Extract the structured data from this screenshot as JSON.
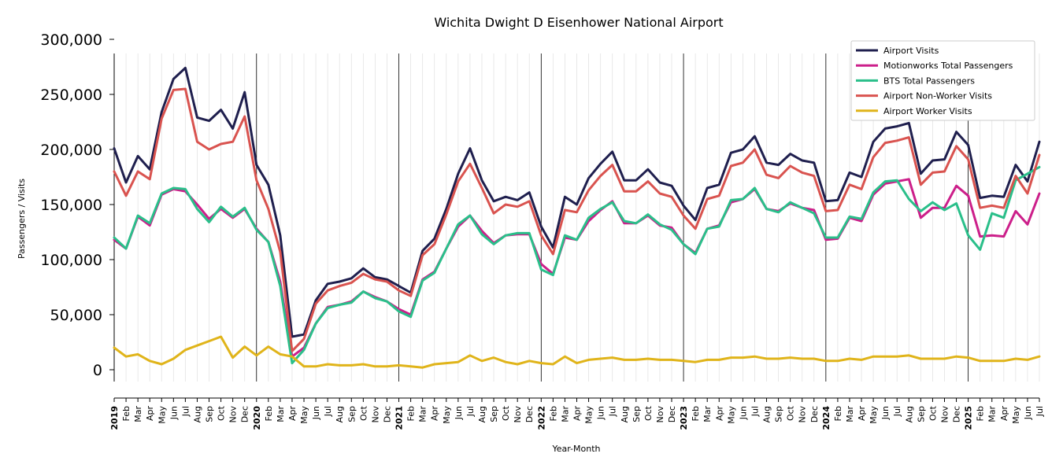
{
  "chart_data": {
    "type": "line",
    "title": "Wichita Dwight D Eisenhower National Airport",
    "xlabel": "Year-Month",
    "ylabel": "Passengers / Visits",
    "ylim": [
      0,
      300000
    ],
    "yticks": [
      0,
      50000,
      100000,
      150000,
      200000,
      250000,
      300000
    ],
    "ytick_labels": [
      "0",
      "50,000",
      "100,000",
      "150,000",
      "200,000",
      "250,000",
      "300,000"
    ],
    "legend_position": "top-right",
    "x": [
      "2019-01",
      "2019-02",
      "2019-03",
      "2019-04",
      "2019-05",
      "2019-06",
      "2019-07",
      "2019-08",
      "2019-09",
      "2019-10",
      "2019-11",
      "2019-12",
      "2020-01",
      "2020-02",
      "2020-03",
      "2020-04",
      "2020-05",
      "2020-06",
      "2020-07",
      "2020-08",
      "2020-09",
      "2020-10",
      "2020-11",
      "2020-12",
      "2021-01",
      "2021-02",
      "2021-03",
      "2021-04",
      "2021-05",
      "2021-06",
      "2021-07",
      "2021-08",
      "2021-09",
      "2021-10",
      "2021-11",
      "2021-12",
      "2022-01",
      "2022-02",
      "2022-03",
      "2022-04",
      "2022-05",
      "2022-06",
      "2022-07",
      "2022-08",
      "2022-09",
      "2022-10",
      "2022-11",
      "2022-12",
      "2023-01",
      "2023-02",
      "2023-03",
      "2023-04",
      "2023-05",
      "2023-06",
      "2023-07",
      "2023-08",
      "2023-09",
      "2023-10",
      "2023-11",
      "2023-12",
      "2024-01",
      "2024-02",
      "2024-03",
      "2024-04",
      "2024-05",
      "2024-06",
      "2024-07",
      "2024-08",
      "2024-09",
      "2024-10",
      "2024-11",
      "2024-12",
      "2025-01",
      "2025-02",
      "2025-03",
      "2025-04",
      "2025-05",
      "2025-06",
      "2025-07"
    ],
    "tick_labels": [
      "2019",
      "Feb",
      "Mar",
      "Apr",
      "May",
      "Jun",
      "Jul",
      "Aug",
      "Sep",
      "Oct",
      "Nov",
      "Dec",
      "2020",
      "Feb",
      "Mar",
      "Apr",
      "May",
      "Jun",
      "Jul",
      "Aug",
      "Sep",
      "Oct",
      "Nov",
      "Dec",
      "2021",
      "Feb",
      "Mar",
      "Apr",
      "May",
      "Jun",
      "Jul",
      "Aug",
      "Sep",
      "Oct",
      "Nov",
      "Dec",
      "2022",
      "Feb",
      "Mar",
      "Apr",
      "May",
      "Jun",
      "Jul",
      "Aug",
      "Sep",
      "Oct",
      "Nov",
      "Dec",
      "2023",
      "Feb",
      "Mar",
      "Apr",
      "May",
      "Jun",
      "Jul",
      "Aug",
      "Sep",
      "Oct",
      "Nov",
      "Dec",
      "2024",
      "Feb",
      "Mar",
      "Apr",
      "May",
      "Jun",
      "Jul",
      "Aug",
      "Sep",
      "Oct",
      "Nov",
      "Dec",
      "2025",
      "Feb",
      "Mar",
      "Apr",
      "May",
      "Jun",
      "Jul"
    ],
    "series": [
      {
        "name": "Airport Visits",
        "color": "#1f1f4e",
        "values": [
          201000,
          170000,
          194000,
          182000,
          234000,
          264000,
          274000,
          229000,
          226000,
          236000,
          219000,
          252000,
          186000,
          168000,
          122000,
          30000,
          32000,
          63000,
          78000,
          80000,
          83000,
          92000,
          84000,
          82000,
          76000,
          70000,
          108000,
          119000,
          146000,
          178000,
          201000,
          172000,
          153000,
          157000,
          154000,
          161000,
          130000,
          111000,
          157000,
          150000,
          174000,
          187000,
          198000,
          172000,
          172000,
          182000,
          170000,
          167000,
          149000,
          136000,
          165000,
          168000,
          197000,
          200000,
          212000,
          188000,
          186000,
          196000,
          190000,
          188000,
          153000,
          154000,
          179000,
          175000,
          207000,
          219000,
          221000,
          224000,
          178000,
          190000,
          191000,
          216000,
          204000,
          156000,
          158000,
          157000,
          186000,
          171000,
          207000
        ]
      },
      {
        "name": "Motionworks Total Passengers",
        "color": "#cc1f8a",
        "values": [
          118000,
          110000,
          139000,
          131000,
          159000,
          164000,
          162000,
          150000,
          137000,
          146000,
          138000,
          146000,
          128000,
          116000,
          80000,
          12000,
          20000,
          42000,
          57000,
          59000,
          62000,
          71000,
          66000,
          62000,
          55000,
          50000,
          82000,
          89000,
          110000,
          130000,
          140000,
          126000,
          115000,
          122000,
          123000,
          123000,
          96000,
          87000,
          120000,
          118000,
          135000,
          145000,
          153000,
          133000,
          133000,
          140000,
          131000,
          129000,
          114000,
          106000,
          128000,
          131000,
          152000,
          155000,
          164000,
          146000,
          144000,
          151000,
          147000,
          145000,
          118000,
          119000,
          138000,
          135000,
          159000,
          169000,
          171000,
          173000,
          138000,
          147000,
          147000,
          167000,
          158000,
          121000,
          122000,
          121000,
          144000,
          132000,
          160000
        ]
      },
      {
        "name": "BTS Total Passengers",
        "color": "#2abf8a",
        "values": [
          120000,
          110000,
          140000,
          133000,
          160000,
          165000,
          164000,
          146000,
          134000,
          148000,
          139000,
          147000,
          127000,
          116000,
          76000,
          6000,
          18000,
          42000,
          56000,
          59000,
          61000,
          71000,
          65000,
          62000,
          53000,
          48000,
          81000,
          88000,
          110000,
          132000,
          140000,
          123000,
          114000,
          122000,
          124000,
          124000,
          91000,
          86000,
          122000,
          118000,
          138000,
          146000,
          152000,
          135000,
          133000,
          141000,
          132000,
          127000,
          114000,
          105000,
          128000,
          130000,
          154000,
          155000,
          165000,
          146000,
          143000,
          152000,
          147000,
          142000,
          120000,
          120000,
          139000,
          137000,
          161000,
          171000,
          172000,
          155000,
          144000,
          152000,
          145000,
          151000,
          122000,
          109000,
          142000,
          138000,
          172000,
          178000,
          184000
        ]
      },
      {
        "name": "Airport Non-Worker Visits",
        "color": "#d9534f",
        "values": [
          180000,
          158000,
          180000,
          173000,
          228000,
          254000,
          255000,
          207000,
          200000,
          205000,
          207000,
          230000,
          172000,
          146000,
          107000,
          17000,
          28000,
          60000,
          72000,
          76000,
          79000,
          87000,
          82000,
          80000,
          72000,
          67000,
          104000,
          114000,
          141000,
          171000,
          187000,
          165000,
          142000,
          150000,
          148000,
          153000,
          122000,
          105000,
          145000,
          143000,
          163000,
          176000,
          186000,
          162000,
          162000,
          171000,
          160000,
          157000,
          140000,
          128000,
          155000,
          158000,
          185000,
          188000,
          200000,
          177000,
          174000,
          185000,
          179000,
          176000,
          144000,
          145000,
          168000,
          164000,
          193000,
          206000,
          208000,
          211000,
          168000,
          179000,
          180000,
          203000,
          191000,
          147000,
          149000,
          147000,
          176000,
          160000,
          195000
        ]
      },
      {
        "name": "Airport Worker Visits",
        "color": "#e0b41a",
        "values": [
          20000,
          12000,
          14000,
          8000,
          5000,
          10000,
          18000,
          22000,
          26000,
          30000,
          11000,
          21000,
          13000,
          21000,
          14000,
          12000,
          3000,
          3000,
          5000,
          4000,
          4000,
          5000,
          3000,
          3000,
          4000,
          3000,
          2000,
          5000,
          6000,
          7000,
          13000,
          8000,
          11000,
          7000,
          5000,
          8000,
          6000,
          5000,
          12000,
          6000,
          9000,
          10000,
          11000,
          9000,
          9000,
          10000,
          9000,
          9000,
          8000,
          7000,
          9000,
          9000,
          11000,
          11000,
          12000,
          10000,
          10000,
          11000,
          10000,
          10000,
          8000,
          8000,
          10000,
          9000,
          12000,
          12000,
          12000,
          13000,
          10000,
          10000,
          10000,
          12000,
          11000,
          8000,
          8000,
          8000,
          10000,
          9000,
          12000
        ]
      }
    ]
  }
}
